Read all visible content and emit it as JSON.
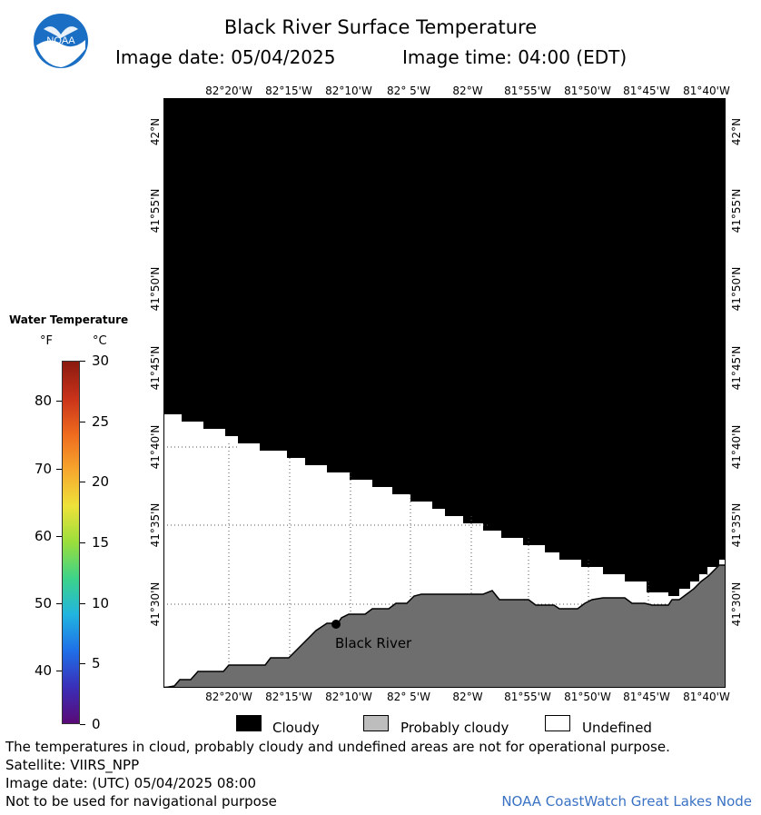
{
  "header": {
    "title": "Black River Surface Temperature",
    "image_date": "Image date: 05/04/2025",
    "image_time": "Image time: 04:00 (EDT)",
    "logo_text": "NOAA"
  },
  "map": {
    "lon_ticks": [
      "82°20'W",
      "82°15'W",
      "82°10'W",
      "82° 5'W",
      "82°W",
      "81°55'W",
      "81°50'W",
      "81°45'W",
      "81°40'W"
    ],
    "lat_ticks": [
      "42°N",
      "41°55'N",
      "41°50'N",
      "41°45'N",
      "41°40'N",
      "41°35'N",
      "41°30'N"
    ],
    "station": {
      "label": "Black River"
    },
    "colors": {
      "cloudy": "#000000",
      "land": "#6e6e6e",
      "undefined": "#ffffff",
      "grid": "#555555"
    }
  },
  "colorbar": {
    "title": "Water Temperature",
    "unit_f": "°F",
    "unit_c": "°C",
    "f_ticks": [
      "80",
      "70",
      "60",
      "50",
      "40"
    ],
    "c_ticks": [
      "30",
      "25",
      "20",
      "15",
      "10",
      "5",
      "0"
    ],
    "colors": [
      "#5a0a78",
      "#3a2fb8",
      "#1f6fe8",
      "#21b4e0",
      "#3cd38a",
      "#9ade3c",
      "#ede23a",
      "#f7a72e",
      "#ee6a1e",
      "#c8321a",
      "#8a1a10"
    ]
  },
  "legend": {
    "cloudy": "Cloudy",
    "probably_cloudy": "Probably cloudy",
    "undefined": "Undefined"
  },
  "footer": {
    "disclaimer": "The temperatures in cloud, probably cloudy and undefined areas are not for operational purpose.",
    "satellite": "Satellite: VIIRS_NPP",
    "utc_date": "Image date: (UTC) 05/04/2025  08:00",
    "nav_warning": "Not to be used for navigational purpose",
    "credit": "NOAA CoastWatch Great Lakes Node"
  }
}
